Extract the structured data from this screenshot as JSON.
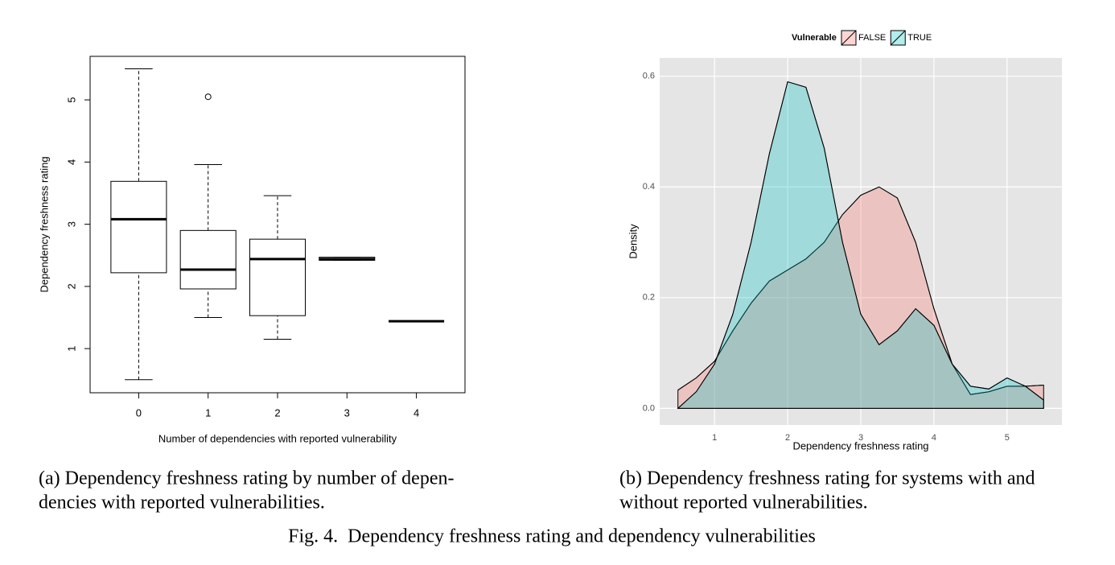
{
  "chart_data": [
    {
      "type": "box",
      "x_label": "Number of dependencies with reported vulnerability",
      "y_label": "Dependency freshness rating",
      "categories": [
        "0",
        "1",
        "2",
        "3",
        "4"
      ],
      "boxes": [
        {
          "min": 0.5,
          "q1": 2.22,
          "median": 3.08,
          "q3": 3.69,
          "max": 5.5,
          "outliers": []
        },
        {
          "min": 1.5,
          "q1": 1.96,
          "median": 2.27,
          "q3": 2.9,
          "max": 3.96,
          "outliers": [
            5.05
          ]
        },
        {
          "min": 1.15,
          "q1": 1.53,
          "median": 2.44,
          "q3": 2.76,
          "max": 3.46,
          "outliers": []
        },
        {
          "min": 2.42,
          "q1": 2.42,
          "median": 2.44,
          "q3": 2.47,
          "max": 2.47,
          "outliers": []
        },
        {
          "min": 1.44,
          "q1": 1.44,
          "median": 1.44,
          "q3": 1.44,
          "max": 1.44,
          "outliers": []
        }
      ],
      "ylim": [
        0.29,
        5.7
      ],
      "yticks": [
        1,
        2,
        3,
        4,
        5
      ],
      "caption": [
        "(a) Dependency freshness rating by number of depen-",
        "dencies with reported vulnerabilities."
      ]
    },
    {
      "type": "density",
      "x_label": "Dependency freshness rating",
      "y_label": "Density",
      "legend_title": "Vulnerable",
      "legend": "top",
      "grid": true,
      "x": [
        0.5,
        0.75,
        1.0,
        1.25,
        1.5,
        1.75,
        2.0,
        2.25,
        2.5,
        2.75,
        3.0,
        3.25,
        3.5,
        3.75,
        4.0,
        4.25,
        4.5,
        4.75,
        5.0,
        5.25,
        5.5
      ],
      "series": [
        {
          "name": "FALSE",
          "color": "#f8766d",
          "values": [
            0.033,
            0.055,
            0.085,
            0.14,
            0.19,
            0.23,
            0.25,
            0.27,
            0.3,
            0.35,
            0.385,
            0.4,
            0.38,
            0.3,
            0.18,
            0.08,
            0.025,
            0.03,
            0.04,
            0.04,
            0.042
          ]
        },
        {
          "name": "TRUE",
          "color": "#00bfc4",
          "values": [
            0.0,
            0.03,
            0.08,
            0.17,
            0.3,
            0.46,
            0.59,
            0.58,
            0.47,
            0.3,
            0.17,
            0.115,
            0.14,
            0.18,
            0.15,
            0.08,
            0.04,
            0.035,
            0.055,
            0.04,
            0.015
          ]
        }
      ],
      "xlim": [
        0.25,
        5.75
      ],
      "xticks": [
        1,
        2,
        3,
        4,
        5
      ],
      "ylim": [
        -0.03,
        0.633
      ],
      "yticks": [
        {
          "value": 0,
          "label": "0.0"
        },
        0.2,
        0.4,
        0.6
      ],
      "caption": [
        "(b) Dependency freshness rating for systems with and",
        "without reported vulnerabilities."
      ]
    }
  ],
  "figure_caption": "Fig. 4.  Dependency freshness rating and dependency vulnerabilities"
}
